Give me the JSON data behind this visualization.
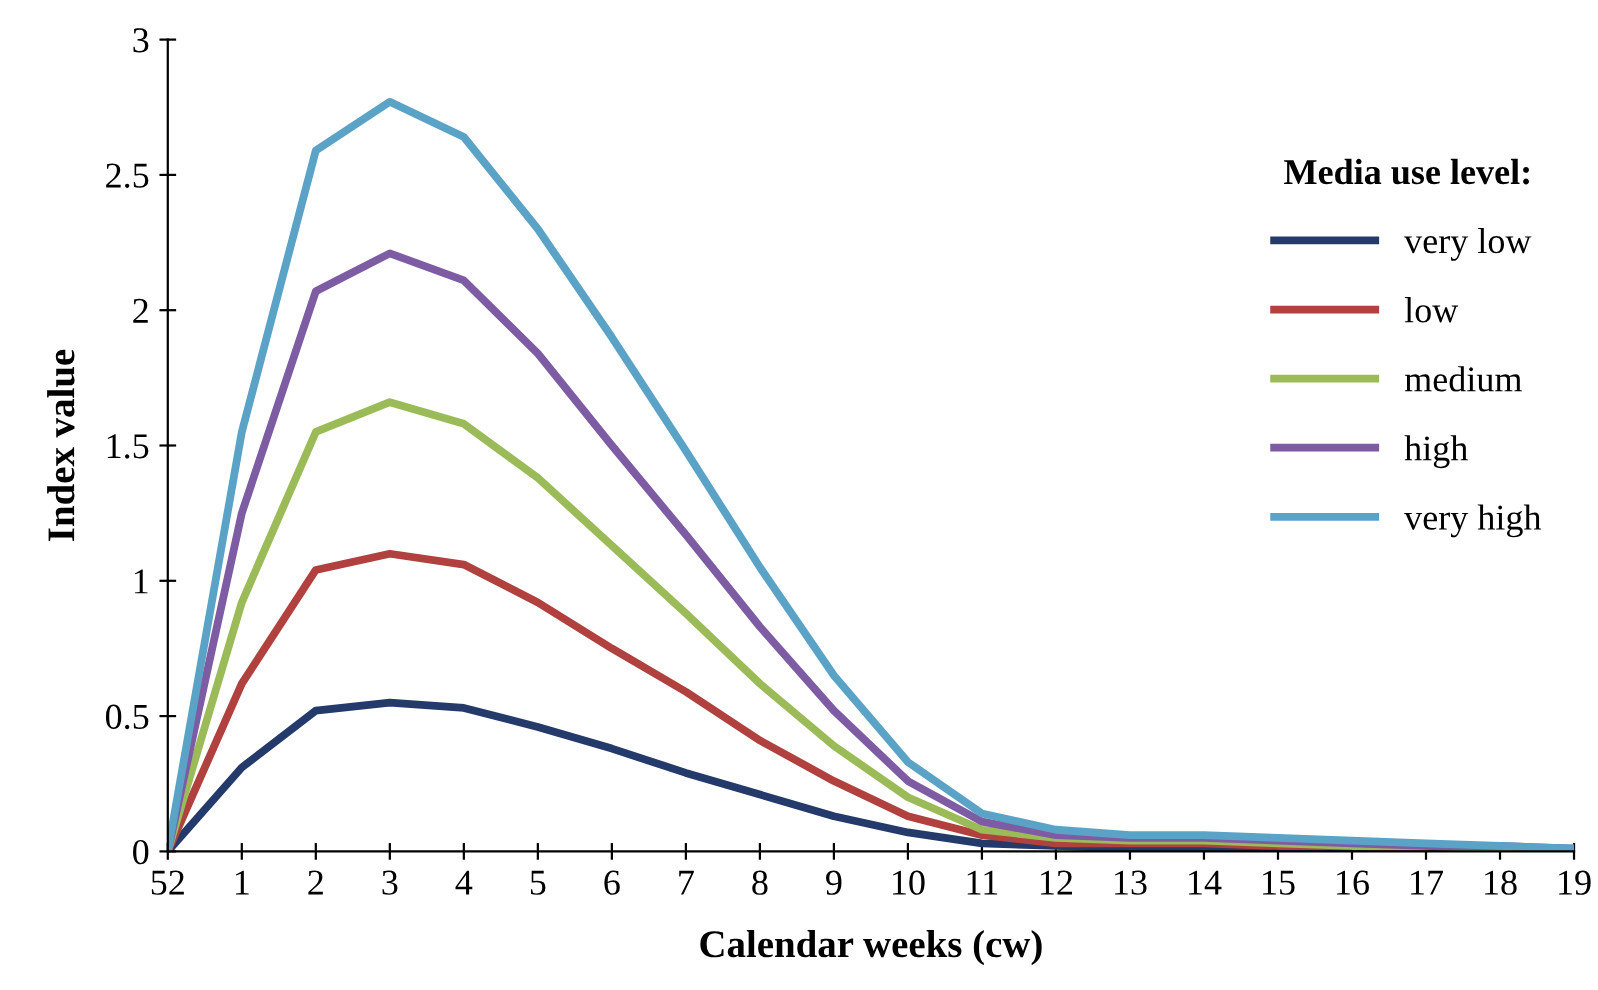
{
  "chart_data": {
    "type": "line",
    "xlabel": "Calendar weeks (cw)",
    "ylabel": "Index value",
    "legend_title": "Media use level:",
    "legend": "right",
    "grid": false,
    "marker": "none",
    "line_style": "solid",
    "categories": [
      "52",
      "1",
      "2",
      "3",
      "4",
      "5",
      "6",
      "7",
      "8",
      "9",
      "10",
      "11",
      "12",
      "13",
      "14",
      "15",
      "16",
      "17",
      "18",
      "19"
    ],
    "ylim": [
      0,
      3
    ],
    "yticks": [
      0,
      0.5,
      1,
      1.5,
      2,
      2.5,
      3
    ],
    "series": [
      {
        "name": "very low",
        "color": "#243a6b",
        "values": [
          0,
          0.31,
          0.52,
          0.55,
          0.53,
          0.46,
          0.38,
          0.29,
          0.21,
          0.13,
          0.07,
          0.03,
          0.02,
          0.01,
          0.01,
          0.01,
          0.01,
          0.01,
          0,
          0
        ]
      },
      {
        "name": "low",
        "color": "#b0413e",
        "values": [
          0,
          0.62,
          1.04,
          1.1,
          1.06,
          0.92,
          0.75,
          0.59,
          0.41,
          0.26,
          0.13,
          0.06,
          0.03,
          0.03,
          0.03,
          0.02,
          0.02,
          0.01,
          null,
          null
        ]
      },
      {
        "name": "medium",
        "color": "#9bbb59",
        "values": [
          0,
          0.92,
          1.55,
          1.66,
          1.58,
          1.38,
          1.13,
          0.88,
          0.62,
          0.39,
          0.2,
          0.08,
          0.05,
          0.04,
          0.04,
          0.03,
          0.02,
          0.02,
          0.01,
          0.01
        ]
      },
      {
        "name": "high",
        "color": "#7e5ca3",
        "values": [
          0,
          1.25,
          2.07,
          2.21,
          2.11,
          1.84,
          1.5,
          1.17,
          0.83,
          0.52,
          0.26,
          0.11,
          0.06,
          0.05,
          0.05,
          0.04,
          0.03,
          0.02,
          0.02,
          0.01
        ]
      },
      {
        "name": "very high",
        "color": "#5ba3c6",
        "values": [
          0,
          1.55,
          2.59,
          2.77,
          2.64,
          2.3,
          1.9,
          1.48,
          1.05,
          0.65,
          0.33,
          0.14,
          0.08,
          0.06,
          0.06,
          0.05,
          0.04,
          0.03,
          0.02,
          0.01
        ]
      }
    ]
  }
}
